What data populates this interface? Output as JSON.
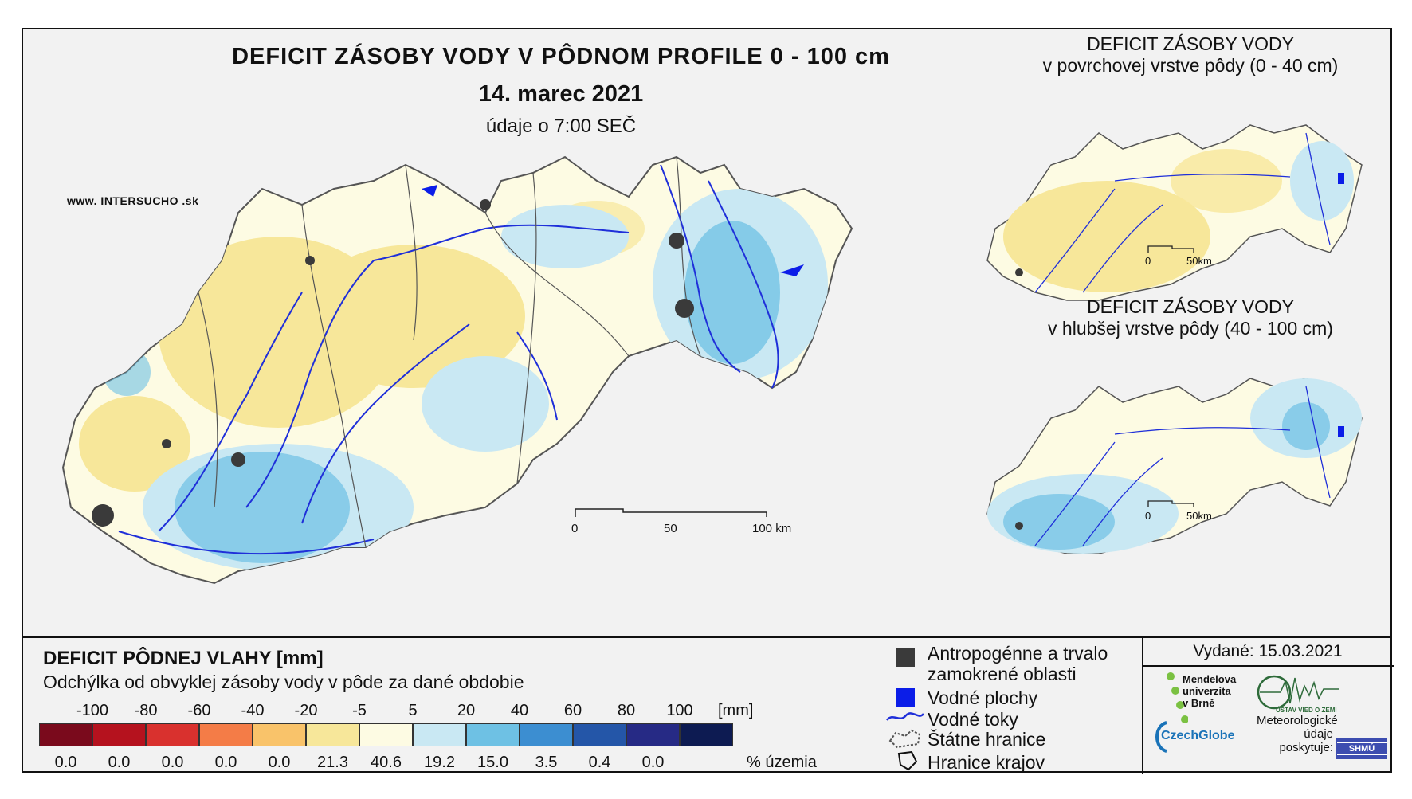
{
  "header": {
    "title": "DEFICIT ZÁSOBY VODY V PÔDNOM PROFILE 0 - 100 cm",
    "date": "14. marec 2021",
    "time_note": "údaje o 7:00 SEČ",
    "brand_prefix": "www. INTER",
    "brand_highlight": "SUCHO",
    "brand_suffix": " .sk"
  },
  "main_scale": {
    "labels": [
      "0",
      "50",
      "100 km"
    ]
  },
  "inset_top": {
    "title_line1": "DEFICIT ZÁSOBY VODY",
    "title_line2": "v povrchovej vrstve pôdy (0 - 40 cm)",
    "scale": [
      "0",
      "50km"
    ]
  },
  "inset_bottom": {
    "title_line1": "DEFICIT ZÁSOBY VODY",
    "title_line2": "v hlubšej vrstve pôdy (40 - 100 cm)",
    "scale": [
      "0",
      "50km"
    ]
  },
  "legend": {
    "title": "DEFICIT PÔDNEJ VLAHY [mm]",
    "subtitle": "Odchýlka od obvyklej zásoby vody v pôde za dané obdobie",
    "ticks": [
      "-100",
      "-80",
      "-60",
      "-40",
      "-20",
      "-5",
      "5",
      "20",
      "40",
      "60",
      "80",
      "100"
    ],
    "unit": "[mm]",
    "colors": [
      "#7a0a1c",
      "#b5121e",
      "#d9312e",
      "#f47c47",
      "#f9c36a",
      "#f7e79a",
      "#fdfbe3",
      "#c9e8f3",
      "#6ec1e4",
      "#3c8ed1",
      "#2456a8",
      "#262a85",
      "#0d1b52"
    ],
    "percentages": [
      "0.0",
      "0.0",
      "0.0",
      "0.0",
      "0.0",
      "21.3",
      "40.6",
      "19.2",
      "15.0",
      "3.5",
      "0.4",
      "0.0",
      ""
    ],
    "percent_label": "% územia"
  },
  "keys": {
    "anthropogenic": "Antropogénne a trvalo zamokrené oblasti",
    "anthropogenic_line1": "Antropogénne a trvalo",
    "anthropogenic_line2": "zamokrené oblasti",
    "water_bodies": "Vodné plochy",
    "rivers": "Vodné toky",
    "state_border": "Štátne hranice",
    "region_border": "Hranice krajov"
  },
  "issued": "Vydané: 15.03.2021",
  "logos": {
    "mendel_1": "Mendelova",
    "mendel_2": "univerzita",
    "mendel_3": "v Brně",
    "czechglobe": "CzechGlobe",
    "uvz": "ÚSTAV VIED O ZEMI",
    "meteo_1": "Meteorologické",
    "meteo_2": "údaje",
    "meteo_3": "poskytuje:",
    "shmu": "SHMÚ"
  }
}
